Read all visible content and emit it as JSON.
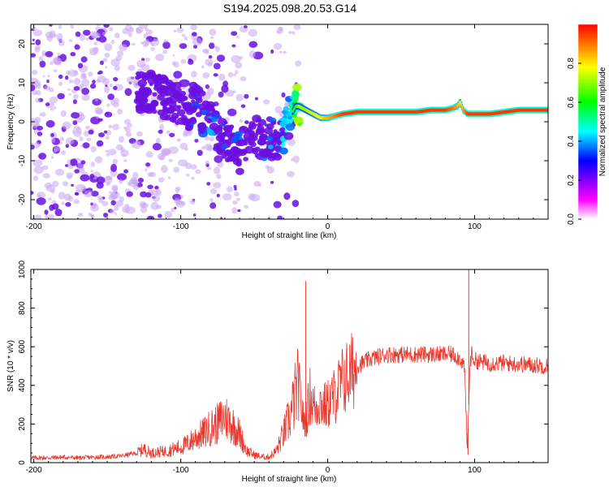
{
  "title": "S194.2025.098.20.53.G14",
  "colors": {
    "snr_line": "#e8392f",
    "axis": "#000000",
    "spectrum_weak": "#c9a6f2",
    "spectrum_strong": "#6a10e0"
  },
  "chart_data": [
    {
      "type": "heatmap",
      "title": "S194.2025.098.20.53.G14",
      "xlabel": "Height of straight line (km)",
      "ylabel": "Frequency (Hz)",
      "xlim": [
        -202,
        150
      ],
      "ylim": [
        -25,
        25
      ],
      "x_ticks": [
        -200,
        -100,
        0,
        100
      ],
      "x_tick_labels": [
        "-200",
        "-100",
        "0",
        "100"
      ],
      "y_ticks": [
        -20,
        -10,
        0,
        10,
        20
      ],
      "y_tick_labels": [
        "-20",
        "-10",
        "0",
        "10",
        "20"
      ],
      "colorbar": {
        "label": "Normalized spectral amplitude",
        "range": [
          0,
          1
        ],
        "ticks": [
          0.0,
          0.2,
          0.4,
          0.6,
          0.8
        ],
        "tick_labels": [
          "0.0",
          "0.2",
          "0.4",
          "0.6",
          "0.8"
        ],
        "colormap": [
          "#ffffff",
          "#ff00ff",
          "#0000ff",
          "#00ffff",
          "#00ff00",
          "#ffff00",
          "#ff0000"
        ]
      },
      "ridge": {
        "x": [
          -120,
          -110,
          -100,
          -95,
          -90,
          -85,
          -80,
          -75,
          -70,
          -65,
          -60,
          -55,
          -50,
          -45,
          -40,
          -35,
          -30,
          -28,
          -25,
          -22,
          -20,
          -15,
          -10,
          -5,
          0,
          5,
          10,
          20,
          30,
          40,
          50,
          60,
          70,
          75,
          80,
          85,
          88,
          90,
          92,
          95,
          100,
          110,
          120,
          130,
          140,
          150
        ],
        "freq": [
          8,
          6,
          4,
          3,
          5,
          2,
          0,
          -3,
          -5,
          -6,
          -8,
          -4,
          -3,
          -5,
          -4,
          -5,
          -3,
          0,
          2,
          4,
          4,
          3,
          2,
          1,
          1,
          1.5,
          2,
          2.5,
          2.5,
          2.5,
          2.5,
          2.5,
          3,
          3,
          3,
          3.5,
          4,
          5,
          3,
          2,
          2,
          2,
          2.5,
          3,
          3,
          3
        ],
        "amplitude": [
          0.15,
          0.2,
          0.2,
          0.3,
          0.3,
          0.3,
          0.35,
          0.3,
          0.3,
          0.3,
          0.3,
          0.3,
          0.3,
          0.3,
          0.35,
          0.35,
          0.4,
          0.45,
          0.5,
          0.6,
          0.7,
          0.7,
          0.75,
          0.8,
          0.85,
          0.9,
          0.95,
          0.95,
          0.95,
          0.95,
          0.95,
          0.95,
          0.95,
          0.95,
          0.95,
          0.9,
          0.85,
          0.8,
          0.85,
          0.95,
          0.95,
          0.95,
          0.95,
          0.95,
          0.95,
          0.95
        ]
      },
      "noise_region": {
        "x_range": [
          -202,
          -20
        ],
        "freq_range": [
          -25,
          25
        ],
        "amplitude": "low"
      }
    },
    {
      "type": "line",
      "xlabel": "Height of straight line (km)",
      "ylabel": "SNR (10 * v/v)",
      "xlim": [
        -202,
        150
      ],
      "ylim": [
        0,
        1000
      ],
      "x_ticks": [
        -200,
        -100,
        0,
        100
      ],
      "x_tick_labels": [
        "-200",
        "-100",
        "0",
        "100"
      ],
      "y_ticks": [
        0,
        200,
        400,
        600,
        800,
        1000
      ],
      "y_tick_labels": [
        "0",
        "200",
        "400",
        "600",
        "800",
        "1000"
      ],
      "series": [
        {
          "x": [
            -202,
            -190,
            -180,
            -170,
            -160,
            -150,
            -140,
            -130,
            -125,
            -120,
            -110,
            -100,
            -95,
            -90,
            -85,
            -80,
            -75,
            -70,
            -65,
            -60,
            -55,
            -50,
            -45,
            -40,
            -35,
            -30,
            -25,
            -22,
            -20,
            -18,
            -16,
            -14,
            -12,
            -10,
            -8,
            -6,
            -4,
            -2,
            0,
            2,
            5,
            10,
            15,
            20,
            25,
            30,
            40,
            50,
            60,
            70,
            80,
            85,
            90,
            93,
            95,
            96,
            97,
            98,
            100,
            105,
            110,
            120,
            130,
            140,
            150
          ],
          "y": [
            25,
            25,
            28,
            25,
            28,
            30,
            35,
            50,
            70,
            50,
            60,
            80,
            100,
            130,
            150,
            180,
            200,
            240,
            200,
            150,
            60,
            40,
            30,
            30,
            60,
            150,
            250,
            350,
            400,
            300,
            200,
            250,
            350,
            300,
            280,
            320,
            300,
            290,
            300,
            320,
            350,
            420,
            460,
            500,
            520,
            540,
            560,
            560,
            560,
            560,
            560,
            560,
            540,
            500,
            60,
            300,
            520,
            560,
            530,
            520,
            515,
            515,
            510,
            505,
            500
          ]
        }
      ],
      "spikes": [
        {
          "x": -15,
          "y": 940
        },
        {
          "x": 96,
          "y": 1000
        },
        {
          "x": 95.5,
          "y": 40
        }
      ]
    }
  ]
}
